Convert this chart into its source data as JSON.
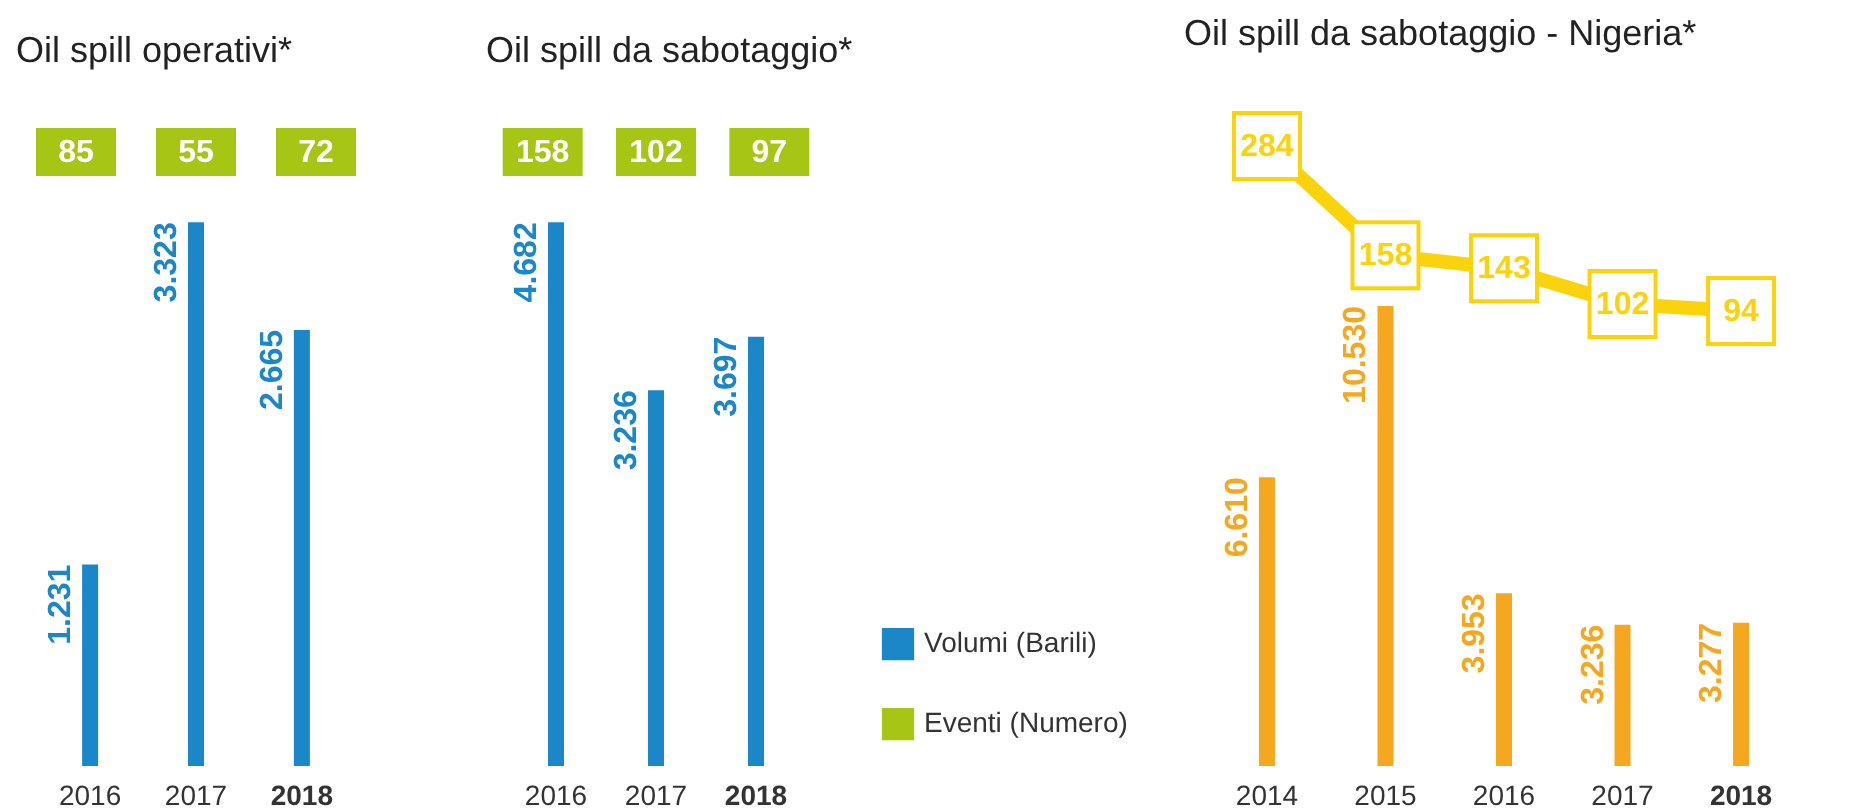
{
  "chart_data": [
    {
      "type": "other",
      "title": "Oil spill operativi*",
      "categories": [
        "2016",
        "2017",
        "2018"
      ],
      "series": [
        {
          "color": "#a6c514",
          "values": [
            85,
            55,
            72
          ],
          "value_labels": [
            "85",
            "55",
            "72"
          ]
        }
      ]
    },
    {
      "type": "bar",
      "categories": [
        "2016",
        "2017",
        "2018"
      ],
      "series": [
        {
          "color": "#1b87c9",
          "values": [
            1231,
            3323,
            2665
          ],
          "value_labels": [
            "1.231",
            "3.323",
            "2.665"
          ]
        }
      ]
    },
    {
      "type": "other",
      "title": "Oil spill da sabotaggio*",
      "categories": [
        "2016",
        "2017",
        "2018"
      ],
      "legend": "bottom right",
      "series": [
        {
          "name": "Eventi (Numero)",
          "color": "#a6c514",
          "values": [
            158,
            102,
            97
          ],
          "value_labels": [
            "158",
            "102",
            "97"
          ]
        }
      ]
    },
    {
      "type": "bar",
      "categories": [
        "2016",
        "2017",
        "2018"
      ],
      "legend": "bottom right",
      "series": [
        {
          "name": "Volumi (Barili)",
          "color": "#1b87c9",
          "values": [
            4682,
            3236,
            3697
          ],
          "value_labels": [
            "4.682",
            "3.236",
            "3.697"
          ]
        }
      ]
    },
    {
      "type": "bar",
      "title": "Oil spill da sabotaggio - Nigeria*",
      "categories": [
        "2014",
        "2015",
        "2016",
        "2017",
        "2018"
      ],
      "series": [
        {
          "color": "#f5a81f",
          "values": [
            6610,
            10530,
            3953,
            3236,
            3277
          ],
          "value_labels": [
            "6.610",
            "10.530",
            "3.953",
            "3.236",
            "3.277"
          ]
        },
        {
          "type": "line",
          "axis": "y2",
          "marker": "square",
          "color": "#fbd30c",
          "values": [
            284,
            158,
            143,
            102,
            94
          ],
          "value_labels": [
            "284",
            "158",
            "143",
            "102",
            "94"
          ]
        }
      ]
    }
  ]
}
